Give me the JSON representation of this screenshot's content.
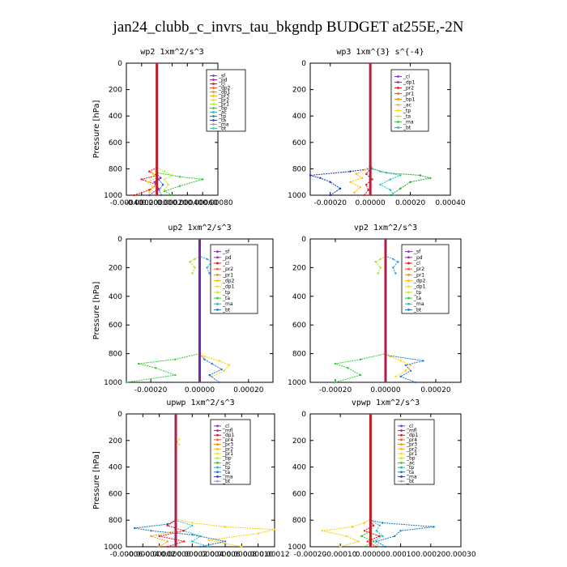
{
  "figure": {
    "title": "jan24_clubb_c_invrs_tau_bkgndp  BUDGET at255E,-2N"
  },
  "chart_data": [
    {
      "type": "line",
      "title": "wp2   1xm^2/s^3",
      "ylabel": "Pressure [hPa]",
      "ylim": [
        1000,
        0
      ],
      "yticks": [
        0,
        200,
        400,
        600,
        800,
        1000
      ],
      "xlim": [
        -0.0004,
        0.0008
      ],
      "xticks": [
        "-0.00040",
        "-0.00020",
        "0.00000",
        "0.00020",
        "0.00040",
        "0.00060",
        "0.00080"
      ],
      "xtick_values": [
        -0.0004,
        -0.0002,
        0,
        0.0002,
        0.0004,
        0.0006,
        0.0008
      ],
      "legend": [
        "_sf",
        "_pd",
        "_cl",
        "_dp2",
        "_dp1",
        "_pr3",
        "_pr2",
        "_pr1",
        "_bp",
        "_ac",
        "_tp",
        "_ta",
        "_ma",
        "_bt"
      ],
      "series": [
        {
          "name": "_dp1",
          "color": "#ee1111",
          "y": [
            1000,
            960,
            920,
            880,
            850,
            820,
            790,
            760,
            720
          ],
          "x": [
            -0.0003,
            -0.0001,
            0.0,
            -0.0002,
            0.0,
            -0.0001,
            0.0,
            0.0,
            0.0
          ]
        },
        {
          "name": "_pr1",
          "color": "#ffcc00",
          "y": [
            980,
            940,
            900,
            870,
            840,
            810,
            780
          ],
          "x": [
            -0.0001,
            -5e-05,
            -0.00012,
            0.0,
            -5e-05,
            0.0,
            0.0
          ]
        },
        {
          "name": "_bp",
          "color": "#22cc22",
          "y": [
            1000,
            970,
            930,
            880,
            860,
            830,
            800,
            760
          ],
          "x": [
            0.0002,
            0.0001,
            0.0003,
            0.0006,
            0.0003,
            0.0,
            0.0,
            0.0
          ]
        },
        {
          "name": "_pr2",
          "color": "#bbee22",
          "y": [
            960,
            920,
            880,
            850,
            820,
            790
          ],
          "x": [
            0.0001,
            0.00015,
            0.0001,
            0.0002,
            0.0001,
            0.0
          ]
        },
        {
          "name": "_tp",
          "color": "#2266dd",
          "y": [
            1000,
            960,
            920,
            880,
            840
          ],
          "x": [
            6e-05,
            3e-05,
            8e-05,
            2e-05,
            0.0
          ]
        },
        {
          "name": "_pd",
          "color": "#8822cc",
          "y": [
            1000,
            950,
            900,
            870,
            840
          ],
          "x": [
            -0.0001,
            2e-05,
            -3e-05,
            5e-05,
            0.0
          ]
        }
      ]
    },
    {
      "type": "line",
      "title": "wp3   1xm^{3} s^{-4}",
      "ylabel": "",
      "ylim": [
        1000,
        0
      ],
      "yticks": [
        0,
        200,
        400,
        600,
        800,
        1000
      ],
      "xlim": [
        -0.0003,
        0.0004
      ],
      "xticks": [
        "-0.00020",
        "0.00000",
        "0.00020",
        "0.00040"
      ],
      "xtick_values": [
        -0.0002,
        0,
        0.0002,
        0.0004
      ],
      "legend": [
        "_cl",
        "_dp1",
        "_pr2",
        "_pr1",
        "_bp1",
        "_ac",
        "_tp",
        "_ta",
        "_ma",
        "_bt"
      ],
      "series": [
        {
          "name": "_tp",
          "color": "#1133bb",
          "y": [
            1000,
            950,
            900,
            870,
            850,
            820,
            800,
            760
          ],
          "x": [
            -0.0002,
            -0.00015,
            -0.0002,
            -0.00025,
            -0.0003,
            -0.0001,
            0.0,
            0.0
          ]
        },
        {
          "name": "_bp1",
          "color": "#22aa22",
          "y": [
            1000,
            950,
            900,
            870,
            850,
            830,
            800,
            760
          ],
          "x": [
            0.0001,
            0.00015,
            0.0002,
            0.0003,
            0.00025,
            8e-05,
            1e-05,
            0.0
          ]
        },
        {
          "name": "_ac",
          "color": "#22bbcc",
          "y": [
            1000,
            960,
            920,
            880,
            850,
            820,
            790
          ],
          "x": [
            0.00012,
            0.0001,
            5e-05,
            0.0001,
            0.00015,
            5e-05,
            0.0
          ]
        },
        {
          "name": "_pr2",
          "color": "#ffbb00",
          "y": [
            980,
            940,
            900,
            870,
            840,
            810,
            780
          ],
          "x": [
            -8e-05,
            -5e-05,
            -0.0001,
            -4e-05,
            -7e-05,
            -3e-05,
            0.0
          ]
        },
        {
          "name": "_dp1",
          "color": "#ee1111",
          "y": [
            1000,
            960,
            920,
            880,
            840,
            800,
            760
          ],
          "x": [
            -3e-05,
            -1e-05,
            -2e-05,
            1e-05,
            -2e-05,
            0.0,
            0.0
          ]
        }
      ]
    },
    {
      "type": "line",
      "title": "up2   1xm^2/s^3",
      "ylabel": "Pressure [hPa]",
      "ylim": [
        1000,
        0
      ],
      "yticks": [
        0,
        200,
        400,
        600,
        800,
        1000
      ],
      "xlim": [
        -0.0003,
        0.0003
      ],
      "xticks": [
        "-0.00020",
        "0.00000",
        "0.00020"
      ],
      "xtick_values": [
        -0.0002,
        0,
        0.0002
      ],
      "legend": [
        "_sf",
        "_pd",
        "_cl",
        "_pr2",
        "_pr1",
        "_dp2",
        "_dp1",
        "_tp",
        "_ta",
        "_ma",
        "_bt"
      ],
      "series": [
        {
          "name": "_dp1",
          "color": "#33cc33",
          "y": [
            1000,
            950,
            900,
            870,
            840,
            800,
            760
          ],
          "x": [
            -0.0003,
            -0.0001,
            -0.00018,
            -0.00025,
            -0.0001,
            0.0,
            0.0
          ]
        },
        {
          "name": "_pr1",
          "color": "#ffcc00",
          "y": [
            960,
            920,
            880,
            850,
            820,
            790
          ],
          "x": [
            5e-05,
            0.0001,
            0.00012,
            8e-05,
            2e-05,
            0.0
          ]
        },
        {
          "name": "_tp",
          "color": "#2277cc",
          "y": [
            1000,
            950,
            910,
            870,
            840,
            800
          ],
          "x": [
            8e-05,
            4e-05,
            9e-05,
            5e-05,
            2e-05,
            0.0
          ]
        },
        {
          "name": "_dp2",
          "color": "#aadd33",
          "y": [
            240,
            200,
            160,
            140,
            120
          ],
          "x": [
            -3e-05,
            -2e-05,
            -4e-05,
            -2e-05,
            0.0
          ]
        },
        {
          "name": "_ta",
          "color": "#3399dd",
          "y": [
            240,
            200,
            160,
            140,
            120
          ],
          "x": [
            4e-05,
            3e-05,
            5e-05,
            3e-05,
            0.0
          ]
        }
      ]
    },
    {
      "type": "line",
      "title": "vp2   1xm^2/s^3",
      "ylabel": "",
      "ylim": [
        1000,
        0
      ],
      "yticks": [
        0,
        200,
        400,
        600,
        800,
        1000
      ],
      "xlim": [
        -0.0003,
        0.0003
      ],
      "xticks": [
        "-0.00020",
        "0.00000",
        "0.00020"
      ],
      "xtick_values": [
        -0.0002,
        0,
        0.0002
      ],
      "legend": [
        "_sf",
        "_pd",
        "_cl",
        "_pr2",
        "_pr1",
        "_dp2",
        "_dp1",
        "_tp",
        "_ta",
        "_ma",
        "_bt"
      ],
      "series": [
        {
          "name": "_dp1",
          "color": "#33cc33",
          "y": [
            1000,
            950,
            900,
            870,
            840,
            800,
            760
          ],
          "x": [
            -0.0002,
            -0.0001,
            -0.00015,
            -0.0002,
            -0.0001,
            0.0,
            0.0
          ]
        },
        {
          "name": "_pr1",
          "color": "#ffcc00",
          "y": [
            960,
            920,
            880,
            850,
            820,
            790
          ],
          "x": [
            4e-05,
            8e-05,
            0.0001,
            6e-05,
            2e-05,
            0.0
          ]
        },
        {
          "name": "_tp",
          "color": "#2277cc",
          "y": [
            1000,
            960,
            920,
            880,
            850,
            810
          ],
          "x": [
            0.00012,
            6e-05,
            0.0001,
            8e-05,
            0.00015,
            0.0
          ]
        },
        {
          "name": "_dp2",
          "color": "#aadd33",
          "y": [
            240,
            200,
            160,
            140,
            120
          ],
          "x": [
            -3e-05,
            -2e-05,
            -4e-05,
            -2e-05,
            0.0
          ]
        },
        {
          "name": "_ta",
          "color": "#3399dd",
          "y": [
            240,
            200,
            160,
            140,
            120
          ],
          "x": [
            4e-05,
            3e-05,
            5e-05,
            3e-05,
            0.0
          ]
        }
      ]
    },
    {
      "type": "line",
      "title": "upwp   1xm^2/s^3",
      "ylabel": "Pressure [hPa]",
      "ylim": [
        1000,
        0
      ],
      "yticks": [
        0,
        200,
        400,
        600,
        800,
        1000
      ],
      "xlim": [
        -6e-05,
        0.00012
      ],
      "xticks": [
        "-0.00006",
        "-0.00004",
        "-0.00002",
        "0.00000",
        "0.00002",
        "0.00004",
        "0.00006",
        "0.00008",
        "0.00010",
        "0.00012"
      ],
      "xtick_values": [
        -6e-05,
        -4e-05,
        -2e-05,
        0,
        2e-05,
        4e-05,
        6e-05,
        8e-05,
        0.0001,
        0.00012
      ],
      "legend": [
        "_cl",
        "_mfl",
        "_dp1",
        "_pr4",
        "_pr3",
        "_pr2",
        "_pr1",
        "_bp",
        "_ac",
        "_tp",
        "_ta",
        "_ma",
        "_bt"
      ],
      "series": [
        {
          "name": "_pr1",
          "color": "#ffcc00",
          "y": [
            1000,
            950,
            900,
            870,
            850,
            820,
            790
          ],
          "x": [
            8e-05,
            4e-05,
            0.0001,
            0.00012,
            6e-05,
            2e-05,
            0.0
          ]
        },
        {
          "name": "_tp",
          "color": "#1177bb",
          "y": [
            1000,
            960,
            910,
            880,
            860,
            830,
            800
          ],
          "x": [
            3e-05,
            6e-05,
            2e-05,
            -3e-05,
            -5e-05,
            -1e-05,
            0.0
          ]
        },
        {
          "name": "_ac",
          "color": "#22bbcc",
          "y": [
            1000,
            960,
            920,
            880,
            840,
            800
          ],
          "x": [
            4e-05,
            2e-05,
            3e-05,
            1e-05,
            2e-05,
            0.0
          ]
        },
        {
          "name": "_dp1",
          "color": "#ee1111",
          "y": [
            1000,
            960,
            920,
            880,
            840,
            800
          ],
          "x": [
            -1e-05,
            1e-05,
            -2e-05,
            1e-05,
            -1e-05,
            0.0
          ]
        },
        {
          "name": "_pr2",
          "color": "#ddaa22",
          "y": [
            1000,
            960,
            920,
            880
          ],
          "x": [
            -2e-05,
            -1e-05,
            -3e-05,
            0.0
          ]
        },
        {
          "name": "_pr4",
          "color": "#ffdd33",
          "y": [
            230,
            210,
            190
          ],
          "x": [
            4e-06,
            2e-06,
            4e-06
          ]
        }
      ]
    },
    {
      "type": "line",
      "title": "vpwp   1xm^2/s^3",
      "ylabel": "",
      "ylim": [
        1000,
        0
      ],
      "yticks": [
        0,
        200,
        400,
        600,
        800,
        1000
      ],
      "xlim": [
        -0.0002,
        0.0003
      ],
      "xticks": [
        "-0.00020",
        "-0.00010",
        "0.00000",
        "0.00010",
        "0.00020",
        "0.00030"
      ],
      "xtick_values": [
        -0.0002,
        -0.0001,
        0,
        0.0001,
        0.0002,
        0.0003
      ],
      "legend": [
        "_cl",
        "_mfl",
        "_dp1",
        "_pr4",
        "_pr3",
        "_pr2",
        "_pr1",
        "_bp",
        "_ac",
        "_tp",
        "_ta",
        "_ma",
        "_bt"
      ],
      "series": [
        {
          "name": "_pr1",
          "color": "#ffcc00",
          "y": [
            1000,
            960,
            920,
            880,
            850,
            820,
            790
          ],
          "x": [
            -0.0001,
            -4e-05,
            -8e-05,
            -0.00016,
            -6e-05,
            -2e-05,
            0.0
          ]
        },
        {
          "name": "_tp",
          "color": "#1177bb",
          "y": [
            1000,
            960,
            920,
            880,
            850,
            820,
            800
          ],
          "x": [
            5e-05,
            2e-05,
            8e-05,
            0.0001,
            0.00021,
            4e-05,
            0.0
          ]
        },
        {
          "name": "_ac",
          "color": "#22bbcc",
          "y": [
            1000,
            960,
            920,
            880,
            840,
            800
          ],
          "x": [
            3e-05,
            1e-05,
            4e-05,
            2e-05,
            3e-05,
            0.0
          ]
        },
        {
          "name": "_dp1",
          "color": "#ee1111",
          "y": [
            1000,
            960,
            920,
            880,
            840,
            800
          ],
          "x": [
            2e-05,
            -1e-05,
            3e-05,
            -2e-05,
            1e-05,
            0.0
          ]
        },
        {
          "name": "_bp",
          "color": "#22cc22",
          "y": [
            1000,
            960,
            920,
            880
          ],
          "x": [
            -2e-05,
            1e-05,
            -3e-05,
            0.0
          ]
        }
      ]
    }
  ]
}
